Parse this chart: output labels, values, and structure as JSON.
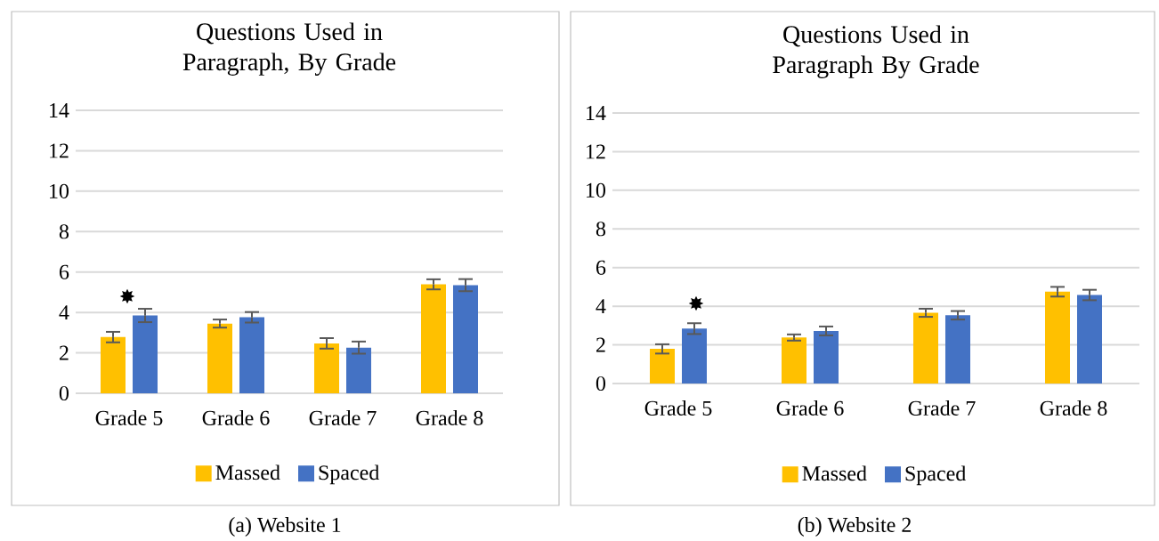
{
  "chart_data": [
    {
      "type": "bar",
      "title": "Questions Used in Paragraph, By Grade",
      "categories": [
        "Grade 5",
        "Grade 6",
        "Grade 7",
        "Grade 8"
      ],
      "series": [
        {
          "name": "Massed",
          "color": "#ffc000",
          "values": [
            2.78,
            3.45,
            2.47,
            5.39
          ],
          "errors": [
            0.26,
            0.2,
            0.26,
            0.25
          ]
        },
        {
          "name": "Spaced",
          "color": "#4472c4",
          "values": [
            3.85,
            3.76,
            2.26,
            5.35
          ],
          "errors": [
            0.33,
            0.26,
            0.3,
            0.3
          ]
        }
      ],
      "ylim": [
        0,
        14
      ],
      "yticks": [
        0,
        2,
        4,
        6,
        8,
        10,
        12,
        14
      ],
      "grid": "y",
      "legend": "bottom",
      "annotations": [
        "✸",
        "(a) Website 1"
      ]
    },
    {
      "type": "bar",
      "title": "Questions Used in Paragraph By Grade",
      "categories": [
        "Grade 5",
        "Grade 6",
        "Grade 7",
        "Grade 8"
      ],
      "series": [
        {
          "name": "Massed",
          "color": "#ffc000",
          "values": [
            1.79,
            2.38,
            3.66,
            4.75
          ],
          "errors": [
            0.24,
            0.16,
            0.21,
            0.25
          ]
        },
        {
          "name": "Spaced",
          "color": "#4472c4",
          "values": [
            2.84,
            2.72,
            3.53,
            4.58
          ],
          "errors": [
            0.28,
            0.23,
            0.22,
            0.27
          ]
        }
      ],
      "ylim": [
        0,
        14
      ],
      "yticks": [
        0,
        2,
        4,
        6,
        8,
        10,
        12,
        14
      ],
      "grid": "y",
      "legend": "bottom",
      "annotations": [
        "✸",
        "(b) Website 2"
      ]
    }
  ]
}
